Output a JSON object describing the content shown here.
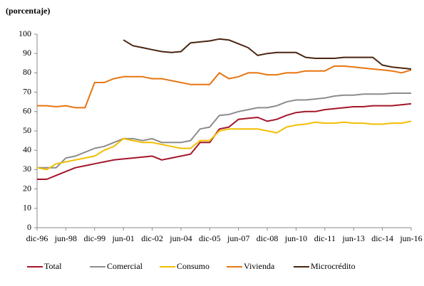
{
  "chart_data": {
    "type": "line",
    "subtitle": "(porcentaje)",
    "categories": [
      "dic-96",
      null,
      null,
      "jun-98",
      null,
      null,
      "dic-99",
      null,
      null,
      "jun-01",
      null,
      null,
      "dic-02",
      null,
      null,
      "jun-04",
      null,
      null,
      "dic-05",
      null,
      null,
      "jun-07",
      null,
      null,
      "dic-08",
      null,
      null,
      "jun-10",
      null,
      null,
      "dic-11",
      null,
      null,
      "jun-13",
      null,
      null,
      "dic-14",
      null,
      null,
      "jun-16"
    ],
    "ylim": [
      0,
      100
    ],
    "yticks": [
      0,
      10,
      20,
      30,
      40,
      50,
      60,
      70,
      80,
      90,
      100
    ],
    "grid": false,
    "legend": "bottom",
    "series": [
      {
        "name": "Total",
        "color": "#a3172a",
        "values": [
          25,
          25,
          27,
          29,
          31,
          32,
          33,
          34,
          35,
          35.5,
          36,
          36.5,
          37,
          35,
          36,
          37,
          38,
          44,
          44,
          51,
          52,
          56,
          56.5,
          57,
          55,
          56,
          58,
          59.5,
          60,
          60,
          61,
          61.5,
          62,
          62.5,
          62.5,
          63,
          63,
          63,
          63.5,
          64
        ]
      },
      {
        "name": "Comercial",
        "color": "#8c8c8c",
        "values": [
          31,
          31,
          31,
          36,
          37,
          39,
          41,
          42,
          44,
          46,
          46,
          45,
          46,
          44,
          44,
          44,
          45,
          51,
          52,
          58,
          58.5,
          60,
          61,
          62,
          62,
          63,
          65,
          66,
          66,
          66.5,
          67,
          68,
          68.5,
          68.5,
          69,
          69,
          69,
          69.5,
          69.5,
          69.5
        ]
      },
      {
        "name": "Consumo",
        "color": "#f2be00",
        "values": [
          31,
          30,
          33,
          34,
          35,
          36,
          37,
          40,
          42,
          46,
          45,
          44,
          44,
          43,
          42,
          41,
          41,
          45,
          45,
          50,
          51,
          51,
          51,
          51,
          50,
          49,
          52,
          53,
          53.5,
          54.5,
          54,
          54,
          54.5,
          54,
          54,
          53.5,
          53.5,
          54,
          54,
          55
        ]
      },
      {
        "name": "Vivienda",
        "color": "#e87511",
        "values": [
          63,
          63,
          62.5,
          63,
          62,
          62,
          75,
          75,
          77,
          78,
          78,
          78,
          77,
          77,
          76,
          75,
          74,
          74,
          74,
          80,
          77,
          78,
          80,
          80,
          79,
          79,
          80,
          80,
          81,
          81,
          81,
          83.5,
          83.5,
          83,
          82.5,
          82,
          81.5,
          81,
          80,
          81.5
        ]
      },
      {
        "name": "Microcrédito",
        "color": "#4a2511",
        "values": [
          null,
          null,
          null,
          null,
          null,
          null,
          null,
          null,
          null,
          97,
          94,
          93,
          92,
          91,
          90.5,
          91,
          95.5,
          96,
          96.5,
          97.5,
          97,
          95,
          93,
          89,
          90,
          90.5,
          90.5,
          90.5,
          88,
          87.5,
          87.5,
          87.5,
          88,
          88,
          88,
          88,
          84,
          83,
          82.5,
          82
        ]
      }
    ]
  }
}
